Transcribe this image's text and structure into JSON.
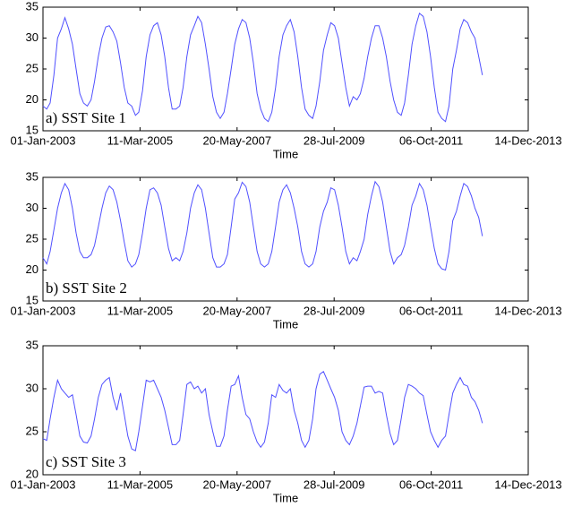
{
  "chart_data": [
    {
      "type": "line",
      "annotation": "a) SST Site 1",
      "xlabel": "Time",
      "color": "#5050ff",
      "xlim": [
        "2003-01-01",
        "2013-12-14"
      ],
      "xticks": [
        {
          "value": "2003-01-01",
          "label": "01-Jan-2003"
        },
        {
          "value": "2005-03-11",
          "label": "11-Mar-2005"
        },
        {
          "value": "2007-05-20",
          "label": "20-May-2007"
        },
        {
          "value": "2009-07-28",
          "label": "28-Jul-2009"
        },
        {
          "value": "2011-10-06",
          "label": "06-Oct-2011"
        },
        {
          "value": "2013-12-14",
          "label": "14-Dec-2013"
        }
      ],
      "ylim": [
        15,
        35
      ],
      "yticks": [
        15,
        20,
        25,
        30,
        35
      ],
      "x": [
        "2003-01",
        "2003-02",
        "2003-03",
        "2003-04",
        "2003-05",
        "2003-06",
        "2003-07",
        "2003-08",
        "2003-09",
        "2003-10",
        "2003-11",
        "2003-12",
        "2004-01",
        "2004-02",
        "2004-03",
        "2004-04",
        "2004-05",
        "2004-06",
        "2004-07",
        "2004-08",
        "2004-09",
        "2004-10",
        "2004-11",
        "2004-12",
        "2005-01",
        "2005-02",
        "2005-03",
        "2005-04",
        "2005-05",
        "2005-06",
        "2005-07",
        "2005-08",
        "2005-09",
        "2005-10",
        "2005-11",
        "2005-12",
        "2006-01",
        "2006-02",
        "2006-03",
        "2006-04",
        "2006-05",
        "2006-06",
        "2006-07",
        "2006-08",
        "2006-09",
        "2006-10",
        "2006-11",
        "2006-12",
        "2007-01",
        "2007-02",
        "2007-03",
        "2007-04",
        "2007-05",
        "2007-06",
        "2007-07",
        "2007-08",
        "2007-09",
        "2007-10",
        "2007-11",
        "2007-12",
        "2008-01",
        "2008-02",
        "2008-03",
        "2008-04",
        "2008-05",
        "2008-06",
        "2008-07",
        "2008-08",
        "2008-09",
        "2008-10",
        "2008-11",
        "2008-12",
        "2009-01",
        "2009-02",
        "2009-03",
        "2009-04",
        "2009-05",
        "2009-06",
        "2009-07",
        "2009-08",
        "2009-09",
        "2009-10",
        "2009-11",
        "2009-12",
        "2010-01",
        "2010-02",
        "2010-03",
        "2010-04",
        "2010-05",
        "2010-06",
        "2010-07",
        "2010-08",
        "2010-09",
        "2010-10",
        "2010-11",
        "2010-12",
        "2011-01",
        "2011-02",
        "2011-03",
        "2011-04",
        "2011-05",
        "2011-06",
        "2011-07",
        "2011-08",
        "2011-09",
        "2011-10",
        "2011-11",
        "2011-12",
        "2012-01",
        "2012-02",
        "2012-03",
        "2012-04",
        "2012-05",
        "2012-06",
        "2012-07",
        "2012-08",
        "2012-09",
        "2012-10",
        "2012-11",
        "2012-12"
      ],
      "values": [
        19,
        18.5,
        19.5,
        24,
        30,
        31.5,
        33.3,
        31.5,
        29,
        25,
        21,
        19.5,
        19,
        20,
        23,
        27,
        30,
        31.8,
        32,
        31,
        29.5,
        26,
        22,
        19.5,
        19,
        17.5,
        18,
        21.5,
        27,
        30.5,
        32,
        32.5,
        30.5,
        27,
        22,
        18.5,
        18.5,
        19,
        22,
        27,
        30.5,
        32,
        33.5,
        32.5,
        29,
        25,
        20.5,
        18,
        17,
        18,
        21,
        25,
        29,
        31.5,
        33,
        32.5,
        30,
        26,
        21,
        18.5,
        17,
        16.5,
        18,
        22,
        27,
        30.5,
        32,
        33,
        31,
        27,
        22,
        18.5,
        17.5,
        17,
        19,
        23,
        28,
        30.5,
        32.5,
        32,
        30,
        26,
        22,
        19,
        20.5,
        20,
        21,
        23.5,
        27,
        30,
        32,
        32,
        30,
        27,
        23,
        20,
        18,
        17.5,
        19.5,
        24,
        29,
        32,
        34,
        33.5,
        31,
        27,
        22,
        18,
        17,
        16.5,
        19,
        25,
        28,
        31.5,
        33,
        32.5,
        31,
        30,
        27,
        24
      ]
    },
    {
      "type": "line",
      "annotation": "b) SST Site 2",
      "xlabel": "Time",
      "color": "#5050ff",
      "xlim": [
        "2003-01-01",
        "2013-12-14"
      ],
      "xticks": [
        {
          "value": "2003-01-01",
          "label": "01-Jan-2003"
        },
        {
          "value": "2005-03-11",
          "label": "11-Mar-2005"
        },
        {
          "value": "2007-05-20",
          "label": "20-May-2007"
        },
        {
          "value": "2009-07-28",
          "label": "28-Jul-2009"
        },
        {
          "value": "2011-10-06",
          "label": "06-Oct-2011"
        },
        {
          "value": "2013-12-14",
          "label": "14-Dec-2013"
        }
      ],
      "ylim": [
        15,
        35
      ],
      "yticks": [
        15,
        20,
        25,
        30,
        35
      ],
      "x": [
        "2003-01",
        "2003-02",
        "2003-03",
        "2003-04",
        "2003-05",
        "2003-06",
        "2003-07",
        "2003-08",
        "2003-09",
        "2003-10",
        "2003-11",
        "2003-12",
        "2004-01",
        "2004-02",
        "2004-03",
        "2004-04",
        "2004-05",
        "2004-06",
        "2004-07",
        "2004-08",
        "2004-09",
        "2004-10",
        "2004-11",
        "2004-12",
        "2005-01",
        "2005-02",
        "2005-03",
        "2005-04",
        "2005-05",
        "2005-06",
        "2005-07",
        "2005-08",
        "2005-09",
        "2005-10",
        "2005-11",
        "2005-12",
        "2006-01",
        "2006-02",
        "2006-03",
        "2006-04",
        "2006-05",
        "2006-06",
        "2006-07",
        "2006-08",
        "2006-09",
        "2006-10",
        "2006-11",
        "2006-12",
        "2007-01",
        "2007-02",
        "2007-03",
        "2007-04",
        "2007-05",
        "2007-06",
        "2007-07",
        "2007-08",
        "2007-09",
        "2007-10",
        "2007-11",
        "2007-12",
        "2008-01",
        "2008-02",
        "2008-03",
        "2008-04",
        "2008-05",
        "2008-06",
        "2008-07",
        "2008-08",
        "2008-09",
        "2008-10",
        "2008-11",
        "2008-12",
        "2009-01",
        "2009-02",
        "2009-03",
        "2009-04",
        "2009-05",
        "2009-06",
        "2009-07",
        "2009-08",
        "2009-09",
        "2009-10",
        "2009-11",
        "2009-12",
        "2010-01",
        "2010-02",
        "2010-03",
        "2010-04",
        "2010-05",
        "2010-06",
        "2010-07",
        "2010-08",
        "2010-09",
        "2010-10",
        "2010-11",
        "2010-12",
        "2011-01",
        "2011-02",
        "2011-03",
        "2011-04",
        "2011-05",
        "2011-06",
        "2011-07",
        "2011-08",
        "2011-09",
        "2011-10",
        "2011-11",
        "2011-12",
        "2012-01",
        "2012-02",
        "2012-03",
        "2012-04",
        "2012-05",
        "2012-06",
        "2012-07",
        "2012-08",
        "2012-09",
        "2012-10",
        "2012-11",
        "2012-12"
      ],
      "values": [
        22,
        21,
        23,
        26.5,
        30,
        32.5,
        34,
        33,
        30,
        26,
        23,
        22,
        22,
        22.5,
        24,
        27,
        30,
        32.5,
        33.6,
        33,
        31,
        28,
        24.5,
        21.5,
        20.5,
        21,
        22.5,
        26,
        30,
        33,
        33.3,
        32.5,
        30.5,
        27,
        23.5,
        21.5,
        22,
        21.5,
        23,
        26,
        30,
        32.5,
        33.8,
        33,
        30,
        26,
        22,
        20.5,
        20.5,
        21,
        22.5,
        27,
        31.5,
        32.5,
        34.2,
        33.5,
        31,
        27,
        23,
        21,
        20.5,
        21,
        23,
        27,
        31,
        33,
        33.8,
        32.5,
        30,
        27,
        23,
        21,
        20.5,
        21,
        23,
        27,
        29.5,
        31,
        33.3,
        33,
        30.5,
        27,
        23,
        21,
        22,
        21.5,
        23,
        25,
        29,
        32,
        34.3,
        33.5,
        31,
        27,
        23,
        21,
        22,
        22.5,
        24,
        27,
        30.5,
        32,
        34,
        33,
        30.5,
        27,
        23.5,
        21,
        20.2,
        20,
        23,
        28,
        29.5,
        32,
        34,
        33.5,
        32,
        30,
        28.5,
        25.5
      ]
    },
    {
      "type": "line",
      "annotation": "c) SST Site 3",
      "xlabel": "Time",
      "color": "#5050ff",
      "xlim": [
        "2003-01-01",
        "2013-12-14"
      ],
      "xticks": [
        {
          "value": "2003-01-01",
          "label": "01-Jan-2003"
        },
        {
          "value": "2005-03-11",
          "label": "11-Mar-2005"
        },
        {
          "value": "2007-05-20",
          "label": "20-May-2007"
        },
        {
          "value": "2009-07-28",
          "label": "28-Jul-2009"
        },
        {
          "value": "2011-10-06",
          "label": "06-Oct-2011"
        },
        {
          "value": "2013-12-14",
          "label": "14-Dec-2013"
        }
      ],
      "ylim": [
        20,
        35
      ],
      "yticks": [
        20,
        25,
        30,
        35
      ],
      "x": [
        "2003-01",
        "2003-02",
        "2003-03",
        "2003-04",
        "2003-05",
        "2003-06",
        "2003-07",
        "2003-08",
        "2003-09",
        "2003-10",
        "2003-11",
        "2003-12",
        "2004-01",
        "2004-02",
        "2004-03",
        "2004-04",
        "2004-05",
        "2004-06",
        "2004-07",
        "2004-08",
        "2004-09",
        "2004-10",
        "2004-11",
        "2004-12",
        "2005-01",
        "2005-02",
        "2005-03",
        "2005-04",
        "2005-05",
        "2005-06",
        "2005-07",
        "2005-08",
        "2005-09",
        "2005-10",
        "2005-11",
        "2005-12",
        "2006-01",
        "2006-02",
        "2006-03",
        "2006-04",
        "2006-05",
        "2006-06",
        "2006-07",
        "2006-08",
        "2006-09",
        "2006-10",
        "2006-11",
        "2006-12",
        "2007-01",
        "2007-02",
        "2007-03",
        "2007-04",
        "2007-05",
        "2007-06",
        "2007-07",
        "2007-08",
        "2007-09",
        "2007-10",
        "2007-11",
        "2007-12",
        "2008-01",
        "2008-02",
        "2008-03",
        "2008-04",
        "2008-05",
        "2008-06",
        "2008-07",
        "2008-08",
        "2008-09",
        "2008-10",
        "2008-11",
        "2008-12",
        "2009-01",
        "2009-02",
        "2009-03",
        "2009-04",
        "2009-05",
        "2009-06",
        "2009-07",
        "2009-08",
        "2009-09",
        "2009-10",
        "2009-11",
        "2009-12",
        "2010-01",
        "2010-02",
        "2010-03",
        "2010-04",
        "2010-05",
        "2010-06",
        "2010-07",
        "2010-08",
        "2010-09",
        "2010-10",
        "2010-11",
        "2010-12",
        "2011-01",
        "2011-02",
        "2011-03",
        "2011-04",
        "2011-05",
        "2011-06",
        "2011-07",
        "2011-08",
        "2011-09",
        "2011-10",
        "2011-11",
        "2011-12",
        "2012-01",
        "2012-02",
        "2012-03",
        "2012-04",
        "2012-05",
        "2012-06",
        "2012-07",
        "2012-08",
        "2012-09",
        "2012-10",
        "2012-11",
        "2012-12"
      ],
      "values": [
        24.2,
        24,
        26.5,
        29,
        31,
        30,
        29.5,
        29,
        29.3,
        27,
        24.5,
        23.8,
        23.7,
        24.5,
        26.5,
        29,
        30.5,
        31,
        31.3,
        29,
        27.5,
        29.5,
        27,
        24.5,
        23,
        22.8,
        25,
        28,
        31,
        30.8,
        31,
        30,
        29,
        27.5,
        25.5,
        23.5,
        23.5,
        24,
        27,
        30.5,
        30.8,
        30,
        30.3,
        29.5,
        30,
        27,
        25,
        23.3,
        23.3,
        24.5,
        27.5,
        30.3,
        30.5,
        31.5,
        29,
        27,
        26.5,
        25,
        23.8,
        23.2,
        23.8,
        26,
        29.3,
        29,
        30.5,
        29.8,
        29.5,
        30,
        27.5,
        26,
        24,
        23.2,
        24,
        26.5,
        30,
        31.7,
        32,
        31,
        30,
        29,
        27.5,
        25,
        24,
        23.5,
        24.5,
        26,
        28,
        30.2,
        30.3,
        30.3,
        29.5,
        29.7,
        29.5,
        27,
        24.8,
        23.5,
        24,
        26.5,
        29,
        30.5,
        30.3,
        30,
        29.5,
        29.2,
        27,
        25,
        24,
        23.2,
        24,
        24.5,
        27,
        29.5,
        30.5,
        31.3,
        30.5,
        30.3,
        29,
        28.5,
        27.5,
        26
      ]
    }
  ]
}
